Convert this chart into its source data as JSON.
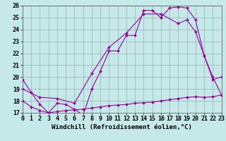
{
  "background_color": "#c5e8e8",
  "grid_color": "#9ab0b0",
  "line_color": "#990099",
  "xlim": [
    0,
    23
  ],
  "ylim": [
    17,
    26
  ],
  "xtick_labels": [
    "0",
    "1",
    "2",
    "3",
    "4",
    "5",
    "6",
    "7",
    "8",
    "9",
    "10",
    "11",
    "12",
    "13",
    "14",
    "15",
    "16",
    "17",
    "18",
    "19",
    "20",
    "21",
    "22",
    "23"
  ],
  "xtick_vals": [
    0,
    1,
    2,
    3,
    4,
    5,
    6,
    7,
    8,
    9,
    10,
    11,
    12,
    13,
    14,
    15,
    16,
    17,
    18,
    19,
    20,
    21,
    22,
    23
  ],
  "ytick_vals": [
    17,
    18,
    19,
    20,
    21,
    22,
    23,
    24,
    25,
    26
  ],
  "xlabel": "Windchill (Refroidissement éolien,°C)",
  "series1_x": [
    0,
    1,
    2,
    3,
    4,
    5,
    6,
    7,
    8,
    9,
    10,
    11,
    12,
    13,
    14,
    15,
    16,
    17,
    18,
    19,
    20,
    21,
    22,
    23
  ],
  "series1_y": [
    19.8,
    18.7,
    17.7,
    17.0,
    17.8,
    17.7,
    17.3,
    16.8,
    19.0,
    20.5,
    22.2,
    22.2,
    23.5,
    23.5,
    25.6,
    25.6,
    25.0,
    25.8,
    25.9,
    25.8,
    24.8,
    21.8,
    20.0,
    18.5
  ],
  "series2_x": [
    0,
    1,
    2,
    3,
    4,
    5,
    6,
    7,
    8,
    9,
    10,
    11,
    12,
    13,
    14,
    15,
    16,
    17,
    18,
    19,
    20,
    21,
    22,
    23
  ],
  "series2_y": [
    18.0,
    17.5,
    17.2,
    17.0,
    17.1,
    17.2,
    17.25,
    17.3,
    17.4,
    17.5,
    17.6,
    17.65,
    17.7,
    17.8,
    17.85,
    17.9,
    18.0,
    18.1,
    18.2,
    18.3,
    18.35,
    18.3,
    18.35,
    18.5
  ],
  "series3_x": [
    0,
    2,
    4,
    6,
    8,
    10,
    12,
    14,
    16,
    18,
    19,
    20,
    21,
    22,
    23
  ],
  "series3_y": [
    19.0,
    18.3,
    18.2,
    17.8,
    20.3,
    22.5,
    23.7,
    25.3,
    25.3,
    24.5,
    24.8,
    23.8,
    21.8,
    19.8,
    20.0
  ],
  "tick_fontsize": 6,
  "xlabel_fontsize": 6.5,
  "marker_size": 2.0,
  "linewidth": 0.8
}
